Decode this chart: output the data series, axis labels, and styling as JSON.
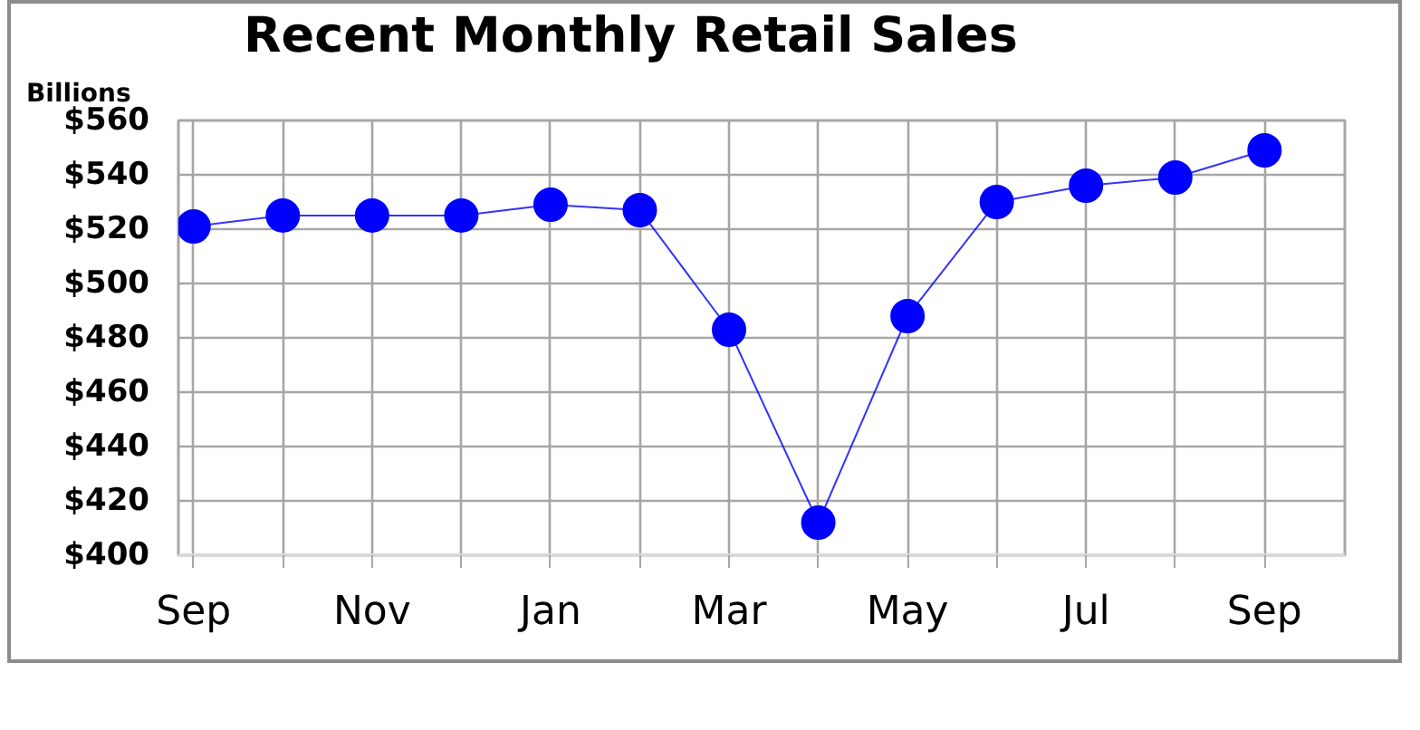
{
  "chart_data": {
    "type": "line",
    "title": "Recent Monthly Retail Sales",
    "ylabel": "Billions",
    "categories": [
      "Sep",
      null,
      "Nov",
      null,
      "Jan",
      null,
      "Mar",
      null,
      "May",
      null,
      "Jul",
      null,
      "Sep"
    ],
    "series": [
      {
        "color": "#0000ff",
        "values": [
          521,
          525,
          525,
          525,
          529,
          527,
          483,
          412,
          488,
          530,
          536,
          539,
          549
        ]
      }
    ],
    "ylim": [
      400,
      560
    ],
    "yticks": [
      {
        "value": 400,
        "label": "$400"
      },
      {
        "value": 420,
        "label": "$420"
      },
      {
        "value": 440,
        "label": "$440"
      },
      {
        "value": 460,
        "label": "$460"
      },
      {
        "value": 480,
        "label": "$480"
      },
      {
        "value": 500,
        "label": "$500"
      },
      {
        "value": 520,
        "label": "$520"
      },
      {
        "value": 540,
        "label": "$540"
      },
      {
        "value": 560,
        "label": "$560"
      }
    ],
    "grid": true,
    "marker": "circle",
    "line_style": "solid"
  }
}
